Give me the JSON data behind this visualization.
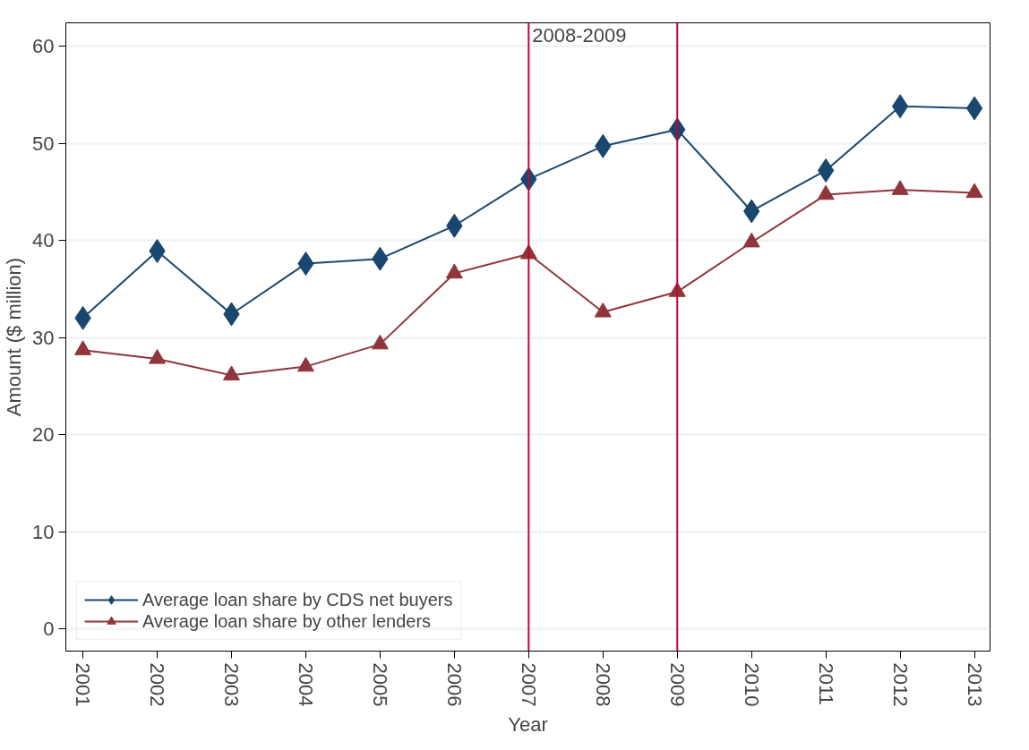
{
  "chart_data": {
    "type": "line",
    "xlabel": "Year",
    "ylabel": "Amount ($ million)",
    "x": [
      2001,
      2002,
      2003,
      2004,
      2005,
      2006,
      2007,
      2008,
      2009,
      2010,
      2011,
      2012,
      2013
    ],
    "series": [
      {
        "name": "Average loan share by CDS net buyers",
        "color": "#1a476f",
        "marker": "diamond",
        "values": [
          32.0,
          38.9,
          32.4,
          37.6,
          38.1,
          41.5,
          46.3,
          49.7,
          51.4,
          43.0,
          47.2,
          53.8,
          53.6
        ]
      },
      {
        "name": "Average loan share by other lenders",
        "color": "#90353b",
        "marker": "triangle",
        "values": [
          28.7,
          27.8,
          26.1,
          27.0,
          29.3,
          36.6,
          38.6,
          32.6,
          34.7,
          39.8,
          44.7,
          45.2,
          44.9
        ]
      }
    ],
    "xlim": [
      2000.77,
      2013.21
    ],
    "xticks": [
      2001,
      2002,
      2003,
      2004,
      2005,
      2006,
      2007,
      2008,
      2009,
      2010,
      2011,
      2012,
      2013
    ],
    "ylim": [
      -2.3,
      62.4
    ],
    "yticks": [
      0,
      10,
      20,
      30,
      40,
      50,
      60
    ],
    "ref_lines": [
      {
        "axis": "x",
        "value": 2007,
        "color": "#c10534"
      },
      {
        "axis": "x",
        "value": 2009,
        "color": "#c10534"
      }
    ],
    "annotations": [
      "2008-2009"
    ],
    "grid": "y",
    "legend": "bottom",
    "line_style": "solid"
  }
}
